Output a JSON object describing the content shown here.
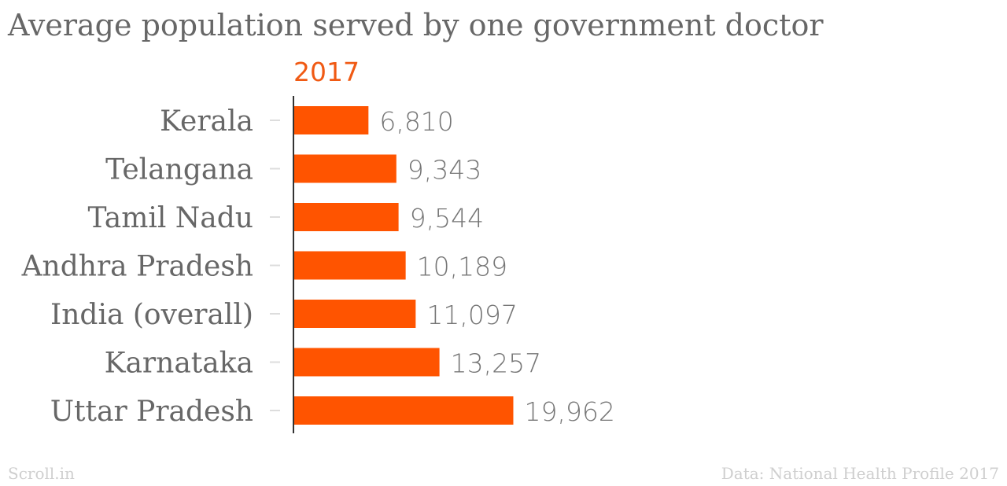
{
  "title": "Average population served by one government doctor",
  "footer": {
    "source_brand": "Scroll.in",
    "credit": "Data: National Health Profile 2017"
  },
  "colors": {
    "bar": "#ff5400",
    "series_label": "#f05a14",
    "text": "#676767",
    "axis": "#333333",
    "tick": "#dddddd"
  },
  "chart_data": {
    "type": "bar",
    "orientation": "horizontal",
    "title": "Average population served by one government doctor",
    "series": [
      {
        "name": "2017",
        "values": [
          6810,
          9343,
          9544,
          10189,
          11097,
          13257,
          19962
        ]
      }
    ],
    "categories": [
      "Kerala",
      "Telangana",
      "Tamil Nadu",
      "Andhra Pradesh",
      "India (overall)",
      "Karnataka",
      "Uttar Pradesh"
    ],
    "value_labels": [
      "6,810",
      "9,343",
      "9,544",
      "10,189",
      "11,097",
      "13,257",
      "19,962"
    ],
    "xlim": [
      0,
      20000
    ],
    "grid": false
  }
}
